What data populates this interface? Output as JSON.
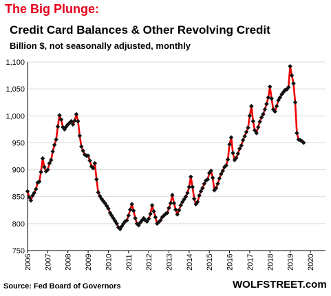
{
  "header": {
    "headline": "The Big Plunge:",
    "headline_color": "#e8001c",
    "title": "Credit Card Balances & Other Revolving Credit",
    "subtitle": "Billion $, not seasonally adjusted, monthly"
  },
  "footer": {
    "source": "Source: Fed Board of Governors",
    "brand": "WOLFSTREET.com"
  },
  "chart_data": {
    "type": "line",
    "title": "Credit Card Balances & Other Revolving Credit",
    "subtitle": "Billion $, not seasonally adjusted, monthly",
    "xlabel": "",
    "ylabel": "",
    "ylim": [
      750,
      1100
    ],
    "xlim": [
      2006,
      2020.75
    ],
    "y_ticks": [
      750,
      800,
      850,
      900,
      950,
      1000,
      1050,
      1100
    ],
    "y_tick_labels": [
      "750",
      "800",
      "850",
      "900",
      "950",
      "1,000",
      "1,050",
      "1,100"
    ],
    "x_tick_labels": [
      "2006",
      "2007",
      "2008",
      "2009",
      "2010",
      "2011",
      "2012",
      "2013",
      "2014",
      "2015",
      "2016",
      "2017",
      "2018",
      "2019",
      "2020"
    ],
    "grid": {
      "horizontal": true,
      "vertical": false
    },
    "legend": "none",
    "line_color": "#ee0000",
    "marker_color": "#111111",
    "series": [
      {
        "frequency": "monthly",
        "start": "2006-01",
        "values": [
          860,
          849,
          843,
          852,
          857,
          864,
          876,
          878,
          896,
          921,
          905,
          897,
          900,
          912,
          918,
          934,
          946,
          956,
          980,
          1001,
          993,
          979,
          975,
          980,
          984,
          987,
          990,
          984,
          991,
          1003,
          990,
          963,
          943,
          935,
          928,
          926,
          926,
          917,
          906,
          903,
          912,
          882,
          858,
          851,
          846,
          842,
          838,
          833,
          828,
          820,
          815,
          810,
          805,
          800,
          793,
          790,
          795,
          800,
          804,
          806,
          815,
          826,
          836,
          824,
          810,
          800,
          797,
          802,
          806,
          810,
          806,
          804,
          809,
          818,
          834,
          823,
          812,
          800,
          803,
          806,
          812,
          815,
          818,
          820,
          829,
          838,
          853,
          838,
          826,
          817,
          825,
          834,
          840,
          845,
          850,
          857,
          868,
          887,
          868,
          846,
          836,
          840,
          852,
          860,
          866,
          874,
          880,
          882,
          894,
          898,
          885,
          862,
          866,
          874,
          884,
          892,
          898,
          905,
          908,
          919,
          947,
          960,
          931,
          918,
          922,
          930,
          939,
          945,
          955,
          962,
          970,
          978,
          1000,
          1018,
          990,
          973,
          968,
          979,
          989,
          997,
          1003,
          1012,
          1022,
          1034,
          1054,
          1032,
          1012,
          1008,
          1018,
          1029,
          1034,
          1040,
          1044,
          1048,
          1049,
          1053,
          1092,
          1075,
          1060,
          1025,
          968,
          956,
          955,
          953,
          950
        ]
      }
    ]
  }
}
